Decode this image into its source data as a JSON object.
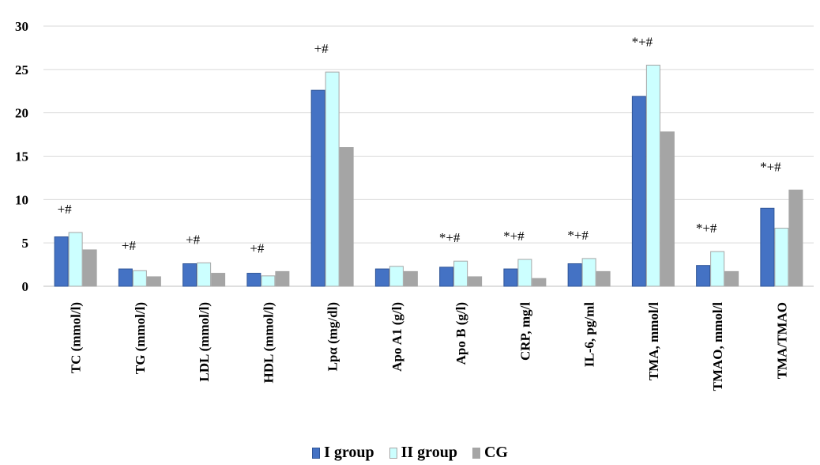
{
  "chart_data": {
    "type": "bar",
    "title": "",
    "xlabel": "",
    "ylabel": "",
    "ylim": [
      0,
      30
    ],
    "yticks": [
      0,
      5,
      10,
      15,
      20,
      25,
      30
    ],
    "grid": true,
    "legend_position": "bottom",
    "categories": [
      "TC (mmol/l)",
      "TG (mmol/l)",
      "LDL (mmol/l)",
      "HDL (mmol/l)",
      "Lpα (mg/dl)",
      "Apo A1 (g/l)",
      "Apo B (g/l)",
      "CRP, mg/l",
      "IL-6, pg/ml",
      "TMA, mmol/l",
      "TMAO, mmol/l",
      "TMA/TMAO"
    ],
    "series": [
      {
        "name": "I group",
        "color": "#4472C4",
        "stroke": "#2F5597",
        "values": [
          5.7,
          2.0,
          2.6,
          1.5,
          22.6,
          2.0,
          2.2,
          2.0,
          2.6,
          21.9,
          2.4,
          9.0
        ]
      },
      {
        "name": "II group",
        "color": "#CCFFFF",
        "stroke": "#A6A6A6",
        "values": [
          6.2,
          1.8,
          2.7,
          1.2,
          24.7,
          2.3,
          2.9,
          3.1,
          3.2,
          25.5,
          4.0,
          6.7
        ]
      },
      {
        "name": "CG",
        "color": "#A5A5A5",
        "stroke": "#A5A5A5",
        "values": [
          4.2,
          1.1,
          1.5,
          1.7,
          16.0,
          1.7,
          1.1,
          0.9,
          1.7,
          17.8,
          1.7,
          11.1
        ]
      }
    ],
    "annotations": [
      "+#",
      "+#",
      "+#",
      "+#",
      "+#",
      "",
      "*+#",
      "*+#",
      "*+#",
      "*+#",
      "*+#",
      "*+#"
    ]
  }
}
